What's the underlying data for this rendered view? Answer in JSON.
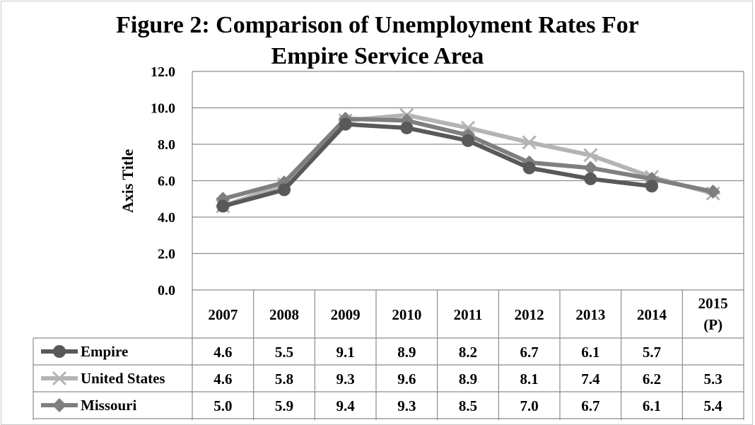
{
  "title_line1": "Figure 2: Comparison of Unemployment Rates For",
  "title_line2": "Empire Service Area",
  "chart_data": {
    "type": "line",
    "title": "Figure 2: Comparison of Unemployment Rates For Empire Service Area",
    "xlabel": "",
    "ylabel": "Axis Title",
    "categories": [
      "2007",
      "2008",
      "2009",
      "2010",
      "2011",
      "2012",
      "2013",
      "2014",
      "2015 (P)"
    ],
    "category_lines": [
      [
        "2007"
      ],
      [
        "2008"
      ],
      [
        "2009"
      ],
      [
        "2010"
      ],
      [
        "2011"
      ],
      [
        "2012"
      ],
      [
        "2013"
      ],
      [
        "2014"
      ],
      [
        "2015",
        "(P)"
      ]
    ],
    "ylim": [
      0,
      12
    ],
    "yticks": [
      "0.0",
      "2.0",
      "4.0",
      "6.0",
      "8.0",
      "10.0",
      "12.0"
    ],
    "grid": true,
    "legend": "data-table",
    "series": [
      {
        "name": "Empire",
        "values": [
          4.6,
          5.5,
          9.1,
          8.9,
          8.2,
          6.7,
          6.1,
          5.7,
          null
        ],
        "labels": [
          "4.6",
          "5.5",
          "9.1",
          "8.9",
          "8.2",
          "6.7",
          "6.1",
          "5.7",
          ""
        ],
        "color": "#595959",
        "marker": "circle"
      },
      {
        "name": "United States",
        "values": [
          4.6,
          5.8,
          9.3,
          9.6,
          8.9,
          8.1,
          7.4,
          6.2,
          5.3
        ],
        "labels": [
          "4.6",
          "5.8",
          "9.3",
          "9.6",
          "8.9",
          "8.1",
          "7.4",
          "6.2",
          "5.3"
        ],
        "color": "#b4b4b4",
        "marker": "star"
      },
      {
        "name": "Missouri",
        "values": [
          5.0,
          5.9,
          9.4,
          9.3,
          8.5,
          7.0,
          6.7,
          6.1,
          5.4
        ],
        "labels": [
          "5.0",
          "5.9",
          "9.4",
          "9.3",
          "8.5",
          "7.0",
          "6.7",
          "6.1",
          "5.4"
        ],
        "color": "#7f7f7f",
        "marker": "diamond"
      }
    ]
  }
}
